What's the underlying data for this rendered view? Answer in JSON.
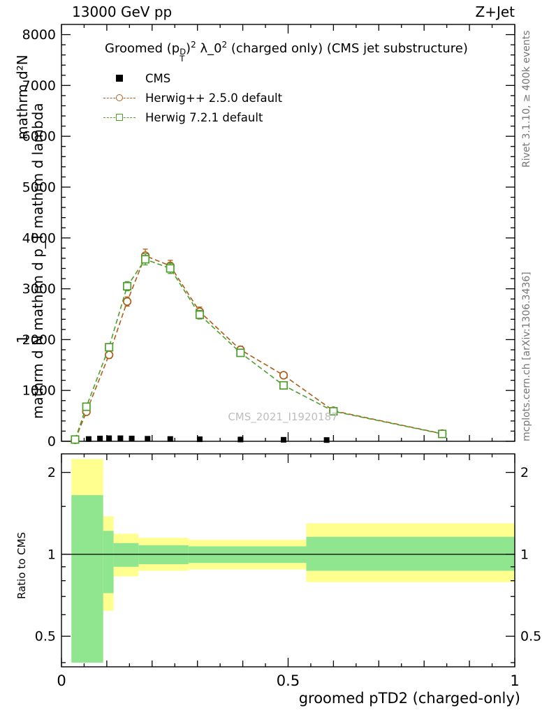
{
  "header": {
    "left": "13000 GeV pp",
    "right": "Z+Jet"
  },
  "main_panel": {
    "title": {
      "p1": "Groomed (p",
      "sup1": "D",
      "sub1": "T",
      "p2": ")",
      "sup2": "2",
      "p3": " λ_0",
      "sup3": "2",
      "p4": " (charged only)  (CMS jet substructure)"
    },
    "legend": [
      {
        "label": "CMS",
        "marker": "filled-square",
        "color": "#000000"
      },
      {
        "label": "Herwig++ 2.5.0 default",
        "marker": "open-circle",
        "color": "#ad5d18"
      },
      {
        "label": "Herwig 7.2.1 default",
        "marker": "open-square",
        "color": "#4d9e2d"
      }
    ],
    "ylabel_fragments": {
      "outer_top": "mathrm d²N",
      "one": "1",
      "inner": "mathrm d N mathrm d p_T mathrm d lambda"
    }
  },
  "ratio_panel": {
    "ylabel": "Ratio to CMS"
  },
  "x_axis": {
    "title": "groomed pTD2 (charged-only)"
  },
  "side_texts": {
    "rivet": "Rivet 3.1.10, ≥ 400k events",
    "mcplots": "mcplots.cern.ch [arXiv:1306.3436]",
    "watermark": "CMS_2021_I1920187"
  },
  "chart_data": {
    "type": "line",
    "title": "Groomed (p_T^D)^2 λ_0^2 (charged only) (CMS jet substructure)",
    "xlabel": "groomed pTD2 (charged-only)",
    "ylabel": "1/mathrm d N · mathrm d²N / (mathrm d p_T mathrm d lambda)",
    "xlim": [
      0,
      1
    ],
    "ylim": [
      0,
      8200
    ],
    "x_major_ticks": [
      0,
      0.5,
      1
    ],
    "x_tick_labels": [
      "0",
      "0.5",
      "1"
    ],
    "y_major_step": 1000,
    "y_minor_step": 200,
    "y_tick_labels": [
      "0",
      "1000",
      "2000",
      "3000",
      "4000",
      "5000",
      "6000",
      "7000",
      "8000"
    ],
    "grid": false,
    "legend_position": "top-left",
    "series": [
      {
        "name": "CMS",
        "type": "scatter",
        "marker": "filled-square",
        "color": "#000000",
        "x": [
          0.03,
          0.06,
          0.085,
          0.105,
          0.13,
          0.155,
          0.19,
          0.24,
          0.305,
          0.395,
          0.49,
          0.585
        ],
        "y": [
          40,
          45,
          55,
          60,
          60,
          55,
          50,
          45,
          40,
          35,
          30,
          25
        ]
      },
      {
        "name": "Herwig++ 2.5.0 default",
        "type": "line+marker",
        "marker": "open-circle",
        "color": "#ad5d18",
        "dashed": true,
        "x": [
          0.03,
          0.055,
          0.105,
          0.145,
          0.185,
          0.24,
          0.305,
          0.395,
          0.49,
          0.6,
          0.84
        ],
        "y": [
          30,
          580,
          1700,
          2750,
          3650,
          3450,
          2550,
          1800,
          1300,
          600,
          150
        ],
        "yerr": [
          10,
          40,
          70,
          90,
          130,
          110,
          90,
          70,
          55,
          35,
          20
        ]
      },
      {
        "name": "Herwig 7.2.1 default",
        "type": "line+marker",
        "marker": "open-square",
        "color": "#4d9e2d",
        "dashed": true,
        "x": [
          0.03,
          0.055,
          0.105,
          0.145,
          0.185,
          0.24,
          0.305,
          0.395,
          0.49,
          0.6,
          0.84
        ],
        "y": [
          35,
          680,
          1850,
          3050,
          3580,
          3400,
          2490,
          1740,
          1100,
          590,
          145
        ],
        "yerr": [
          10,
          40,
          70,
          90,
          110,
          100,
          85,
          65,
          50,
          35,
          20
        ]
      }
    ],
    "ratio": {
      "ylabel": "Ratio to CMS",
      "scale": "log",
      "ylim": [
        0.386,
        2.34
      ],
      "tick_values": [
        0.5,
        1,
        2
      ],
      "tick_labels": [
        "0.5",
        "1",
        "2"
      ],
      "minor_ticks": [
        0.4,
        0.6,
        0.7,
        0.8,
        0.9,
        1.5
      ],
      "reference_line": 1,
      "band_colors": {
        "yellow": "#ffff8f",
        "green": "#8fe68f"
      },
      "bands": [
        {
          "x0": 0.022,
          "x1": 0.092,
          "yellow": [
            0.4,
            2.24
          ],
          "green": [
            0.4,
            1.65
          ]
        },
        {
          "x0": 0.092,
          "x1": 0.115,
          "yellow": [
            0.62,
            1.38
          ],
          "green": [
            0.72,
            1.22
          ]
        },
        {
          "x0": 0.115,
          "x1": 0.17,
          "yellow": [
            0.83,
            1.19
          ],
          "green": [
            0.9,
            1.1
          ]
        },
        {
          "x0": 0.17,
          "x1": 0.28,
          "yellow": [
            0.87,
            1.15
          ],
          "green": [
            0.92,
            1.08
          ]
        },
        {
          "x0": 0.28,
          "x1": 0.54,
          "yellow": [
            0.88,
            1.13
          ],
          "green": [
            0.93,
            1.07
          ]
        },
        {
          "x0": 0.54,
          "x1": 1.0,
          "yellow": [
            0.79,
            1.3
          ],
          "green": [
            0.87,
            1.16
          ]
        }
      ]
    }
  }
}
